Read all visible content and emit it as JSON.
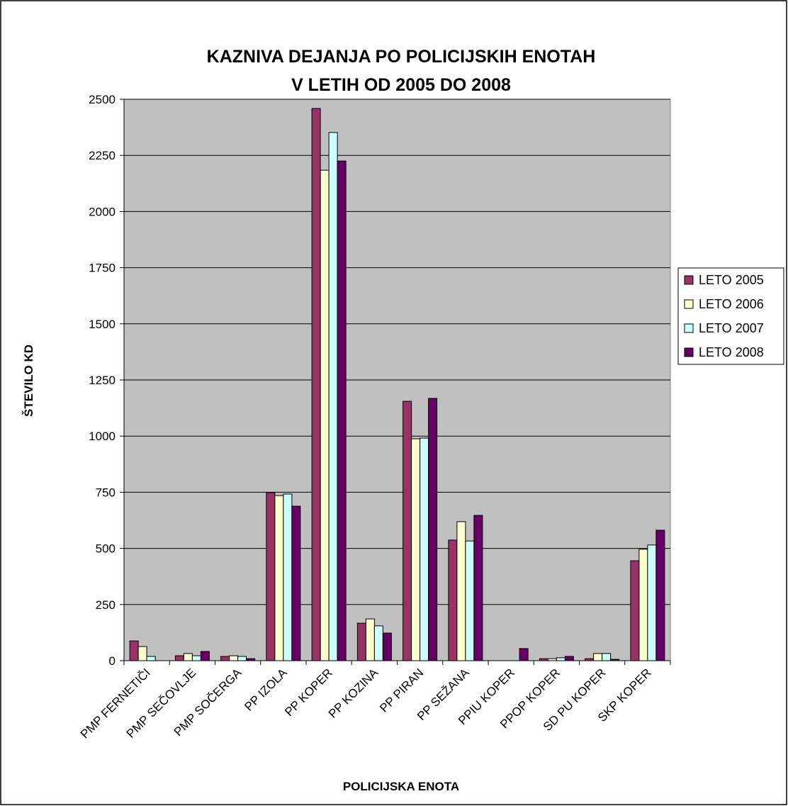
{
  "chart_data": {
    "type": "bar",
    "title": "KAZNIVA DEJANJA PO POLICIJSKIH ENOTAH",
    "subtitle": "V LETIH OD 2005 DO 2008",
    "x_label": "POLICIJSKA ENOTA",
    "y_label": "ŠTEVILO KD",
    "categories": [
      "PMP FERNETIČI",
      "PMP SEČOVLJE",
      "PMP SOČERGA",
      "PP IZOLA",
      "PP KOPER",
      "PP KOZINA",
      "PP PIRAN",
      "PP SEŽANA",
      "PPIU KOPER",
      "PPOP KOPER",
      "SD PU KOPER",
      "SKP KOPER"
    ],
    "series": [
      {
        "name": "LETO 2005",
        "color": "#993366",
        "values": [
          88,
          22,
          19,
          748,
          2459,
          167,
          1155,
          537,
          0,
          9,
          9,
          445
        ]
      },
      {
        "name": "LETO 2006",
        "color": "#ffffcc",
        "values": [
          63,
          32,
          22,
          735,
          2184,
          186,
          988,
          619,
          0,
          9,
          32,
          496
        ]
      },
      {
        "name": "LETO 2007",
        "color": "#ccffff",
        "values": [
          19,
          22,
          19,
          742,
          2352,
          155,
          991,
          533,
          0,
          13,
          32,
          515
        ]
      },
      {
        "name": "LETO 2008",
        "color": "#660066",
        "values": [
          0,
          41,
          9,
          688,
          2225,
          123,
          1168,
          647,
          54,
          19,
          6,
          581
        ]
      }
    ],
    "ylim": [
      0,
      2500
    ],
    "yticks": [
      0,
      250,
      500,
      750,
      1000,
      1250,
      1500,
      1750,
      2000,
      2250,
      2500
    ],
    "grid": true,
    "legend": "right",
    "plot_background": "#c0c0c0"
  }
}
